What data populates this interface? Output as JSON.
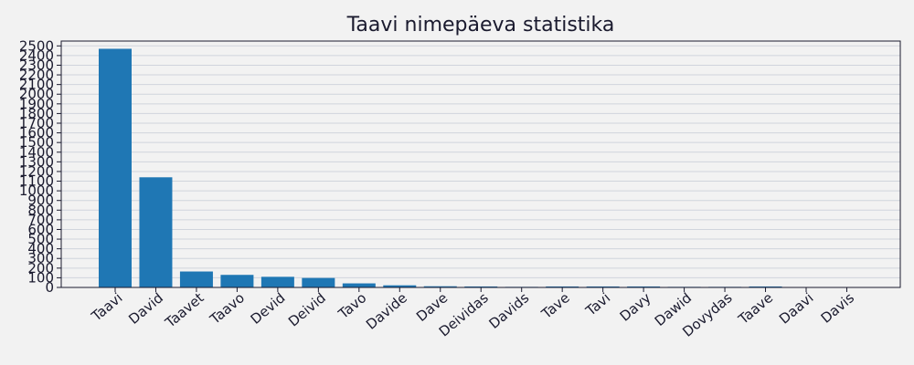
{
  "chart_data": {
    "type": "bar",
    "title": "Taavi nimepäeva statistika",
    "xlabel": "",
    "ylabel": "",
    "categories": [
      "Taavi",
      "David",
      "Taavet",
      "Taavo",
      "Devid",
      "Deivid",
      "Tavo",
      "Davide",
      "Dave",
      "Deividas",
      "Davids",
      "Tave",
      "Tavi",
      "Davy",
      "Dawid",
      "Dovydas",
      "Taave",
      "Daavi",
      "Davis"
    ],
    "values": [
      2470,
      1140,
      165,
      130,
      110,
      98,
      42,
      22,
      12,
      10,
      6,
      10,
      10,
      10,
      6,
      6,
      10,
      4,
      4
    ],
    "ylim": [
      0,
      2550
    ],
    "yticks": [
      0,
      100,
      200,
      300,
      400,
      500,
      600,
      700,
      800,
      900,
      1000,
      1100,
      1200,
      1300,
      1400,
      1500,
      1600,
      1700,
      1800,
      1900,
      2000,
      2100,
      2200,
      2300,
      2400,
      2500
    ],
    "grid": true,
    "bar_color": "#1f77b4",
    "grid_color": "#d0d4dc",
    "background_color": "#f2f2f2"
  }
}
